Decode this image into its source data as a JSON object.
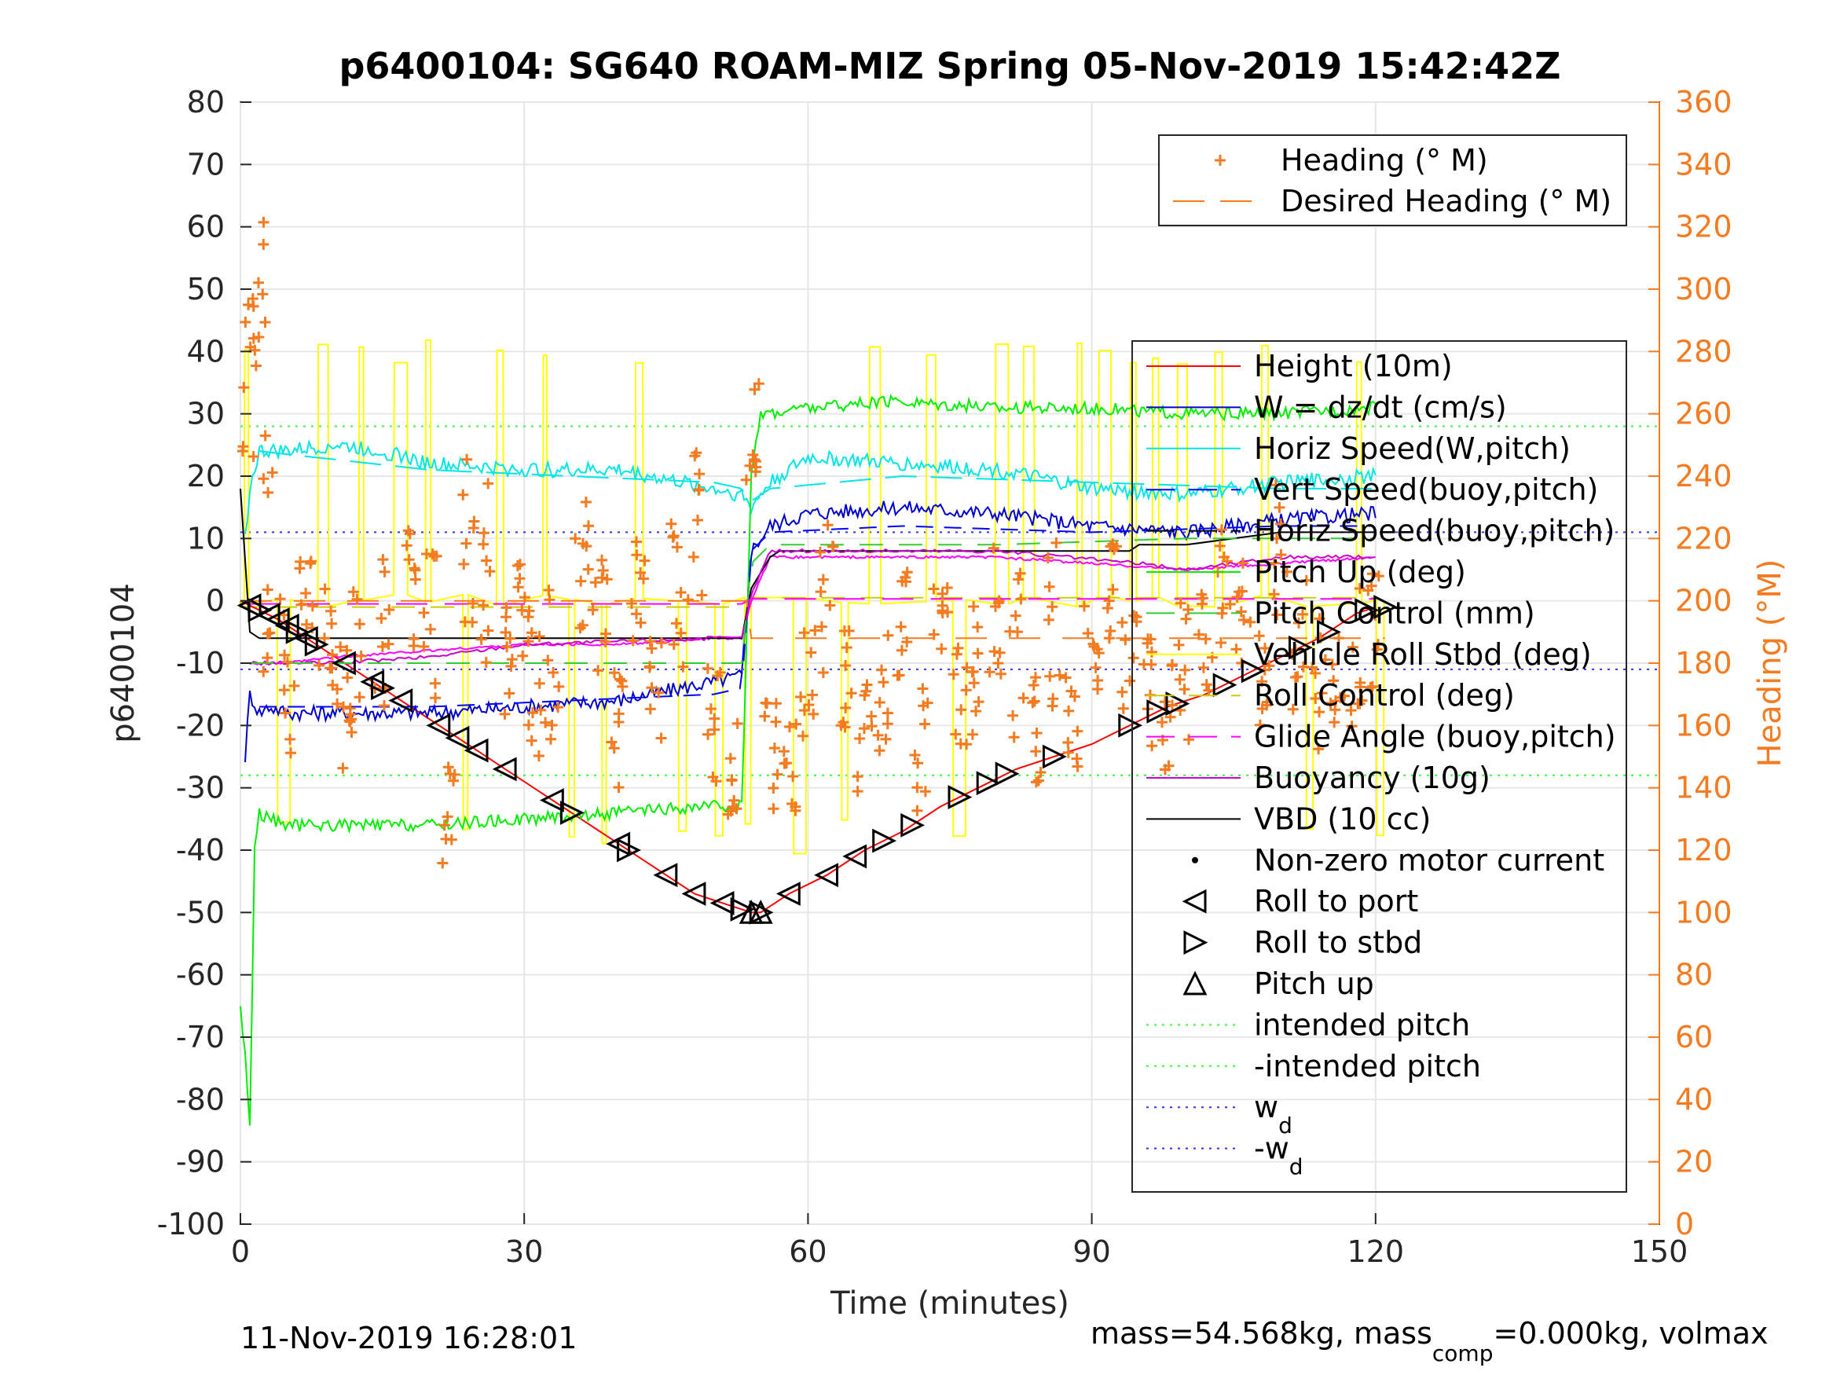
{
  "colors": {
    "heading": "#f47b20",
    "height": "#ff0000",
    "w": "#0000cc",
    "horiz_speed": "#00e5e5",
    "vert_speed_buoy": "#0000ff",
    "horiz_speed_buoy": "#000000",
    "pitch": "#00ee00",
    "pitch_control": "#33cc33",
    "roll": "#ffff00",
    "roll_control": "#cccc00",
    "glide_angle": "#ff00ff",
    "buoyancy": "#cc00cc",
    "vbd": "#000000",
    "intended_pitch": "#33ff33",
    "w_d": "#3333ff",
    "grid": "#e6e6e6",
    "axis": "#262626"
  },
  "chart_data": {
    "type": "line",
    "title": "p6400104: SG640 ROAM-MIZ Spring 05-Nov-2019 15:42:42Z",
    "xlabel": "Time (minutes)",
    "ylabel": "p6400104",
    "ylabel_right": "Heading (°M)",
    "xlim": [
      0,
      150
    ],
    "ylim": [
      -100,
      80
    ],
    "ylim_right": [
      0,
      360
    ],
    "xticks": [
      "0",
      "30",
      "60",
      "90",
      "120",
      "150"
    ],
    "yticks": [
      "80",
      "70",
      "60",
      "50",
      "40",
      "30",
      "20",
      "10",
      "0",
      "-10",
      "-20",
      "-30",
      "-40",
      "-50",
      "-60",
      "-70",
      "-80",
      "-90",
      "-100"
    ],
    "yticks_right": [
      "360",
      "340",
      "320",
      "300",
      "280",
      "260",
      "240",
      "220",
      "200",
      "180",
      "160",
      "140",
      "120",
      "100",
      "80",
      "60",
      "40",
      "20",
      "0"
    ],
    "grid": true,
    "footer_left": "11-Nov-2019 16:28:01",
    "footer_right": "mass=54.568kg, mass",
    "footer_right_sub": "comp",
    "footer_right_tail": "=0.000kg, volmax",
    "legend_top": [
      {
        "label": "Heading (° M)",
        "marker": "plus",
        "color": "#f47b20"
      },
      {
        "label": "Desired Heading (° M)",
        "marker": "dash",
        "color": "#f47b20"
      }
    ],
    "legend_main": [
      {
        "label": "Height (10m)",
        "style": "line",
        "color": "#ff0000"
      },
      {
        "label": "W = dz/dt (cm/s)",
        "style": "line",
        "color": "#0000cc"
      },
      {
        "label": "Horiz Speed(W,pitch)",
        "style": "line",
        "color": "#00e5e5"
      },
      {
        "label": "Vert Speed(buoy,pitch)",
        "style": "dash",
        "color": "#0000ff"
      },
      {
        "label": "Horiz Speed(buoy,pitch)",
        "style": "dash",
        "color": "#000000"
      },
      {
        "label": "Pitch Up (deg)",
        "style": "line",
        "color": "#00ee00"
      },
      {
        "label": "Pitch Control (mm)",
        "style": "dash",
        "color": "#33cc33"
      },
      {
        "label": "Vehicle Roll Stbd (deg)",
        "style": "line",
        "color": "#ffff00"
      },
      {
        "label": "Roll Control (deg)",
        "style": "dash",
        "color": "#cccc00"
      },
      {
        "label": "Glide Angle (buoy,pitch)",
        "style": "dash",
        "color": "#ff00ff"
      },
      {
        "label": "Buoyancy (10g)",
        "style": "line",
        "color": "#cc00cc"
      },
      {
        "label": "VBD (10 cc)",
        "style": "line",
        "color": "#000000"
      },
      {
        "label": "Non-zero motor current",
        "style": "dot",
        "color": "#000000"
      },
      {
        "label": "Roll to port",
        "style": "tri-left",
        "color": "#000000"
      },
      {
        "label": "Roll to stbd",
        "style": "tri-right",
        "color": "#000000"
      },
      {
        "label": "Pitch up",
        "style": "tri-up",
        "color": "#000000"
      },
      {
        "label": "intended pitch",
        "style": "dotted",
        "color": "#33ff33"
      },
      {
        "label": "-intended pitch",
        "style": "dotted",
        "color": "#33ff33"
      },
      {
        "label": "w",
        "sub": "d",
        "style": "dotted",
        "color": "#3333ff"
      },
      {
        "label": "-w",
        "sub": "d",
        "style": "dotted",
        "color": "#3333ff"
      }
    ],
    "series": [
      {
        "name": "Height (10m)",
        "x": [
          0,
          4,
          8,
          12,
          16,
          20,
          24,
          28,
          32,
          36,
          40,
          44,
          48,
          52,
          54,
          55,
          58,
          62,
          66,
          70,
          74,
          78,
          82,
          86,
          90,
          94,
          98,
          102,
          106,
          110,
          114,
          118,
          120
        ],
        "y": [
          0,
          -3,
          -7,
          -11,
          -15,
          -19,
          -23,
          -27,
          -31,
          -35,
          -39,
          -43,
          -47,
          -49,
          -50,
          -50,
          -47,
          -44,
          -40,
          -37,
          -33,
          -30,
          -27,
          -25,
          -23,
          -20,
          -17,
          -15,
          -12,
          -9,
          -6,
          -2,
          -1
        ]
      },
      {
        "name": "W = dz/dt (cm/s)",
        "x": [
          0.5,
          1,
          2,
          3,
          5,
          10,
          20,
          30,
          40,
          50,
          53,
          54,
          56,
          60,
          70,
          80,
          90,
          100,
          110,
          120
        ],
        "y": [
          -25,
          -15,
          -18,
          -17,
          -18,
          -18,
          -18,
          -17,
          -16,
          -13,
          -12,
          8,
          12,
          14,
          15,
          14,
          12,
          11,
          13,
          14
        ]
      },
      {
        "name": "Horiz Speed(W,pitch)",
        "x": [
          0.5,
          1,
          2,
          5,
          10,
          15,
          20,
          30,
          40,
          50,
          53,
          54,
          56,
          60,
          70,
          80,
          90,
          100,
          110,
          120
        ],
        "y": [
          10,
          18,
          24,
          24,
          25,
          24,
          22,
          21,
          21,
          18,
          17,
          15,
          19,
          23,
          22,
          21,
          18,
          17,
          19,
          20
        ]
      },
      {
        "name": "Pitch Up (deg)",
        "x": [
          0,
          0.5,
          1,
          1.5,
          2,
          3,
          5,
          10,
          20,
          30,
          40,
          50,
          53,
          54,
          55,
          60,
          70,
          80,
          90,
          100,
          110,
          120
        ],
        "y": [
          -65,
          -73,
          -84,
          -40,
          -34,
          -35,
          -36,
          -36,
          -36,
          -35,
          -34,
          -33,
          -33,
          20,
          30,
          31,
          32,
          31,
          31,
          30,
          30,
          31
        ]
      },
      {
        "name": "Glide Angle (buoy,pitch)",
        "x": [
          1,
          5,
          10,
          20,
          30,
          40,
          50,
          53,
          54,
          56,
          60,
          80,
          90,
          100,
          110,
          120
        ],
        "y": [
          -10,
          -10,
          -9,
          -8,
          -7,
          -7,
          -6,
          -6,
          0,
          7,
          7,
          7,
          6,
          5,
          6,
          7
        ]
      },
      {
        "name": "VBD (10 cc)",
        "x": [
          0,
          1,
          2,
          10,
          30,
          50,
          53,
          54,
          56,
          57,
          70,
          80,
          94,
          95,
          100,
          105,
          110,
          120
        ],
        "y": [
          18,
          -5,
          -6,
          -6,
          -6,
          -6,
          -6,
          2,
          7,
          8,
          8,
          8,
          8,
          9,
          9,
          10,
          11,
          11
        ]
      }
    ],
    "reference_lines": [
      {
        "name": "intended pitch",
        "y": 28
      },
      {
        "name": "-intended pitch",
        "y": -28
      },
      {
        "name": "w_d",
        "y": 11
      },
      {
        "name": "-w_d",
        "y": -11
      }
    ],
    "roll_to_port_markers_x": [
      1,
      3,
      4,
      5,
      7,
      11,
      14,
      17,
      21,
      23,
      25,
      28,
      33,
      40,
      45,
      48,
      51,
      58,
      62,
      65
    ],
    "roll_to_stbd_markers_x": [
      2,
      6,
      8,
      15,
      35,
      41,
      53,
      55,
      68,
      71,
      76,
      79,
      81,
      86,
      94,
      97,
      99,
      104,
      107,
      112,
      115,
      119,
      121
    ],
    "pitch_up_markers_x": [
      54,
      55
    ]
  }
}
